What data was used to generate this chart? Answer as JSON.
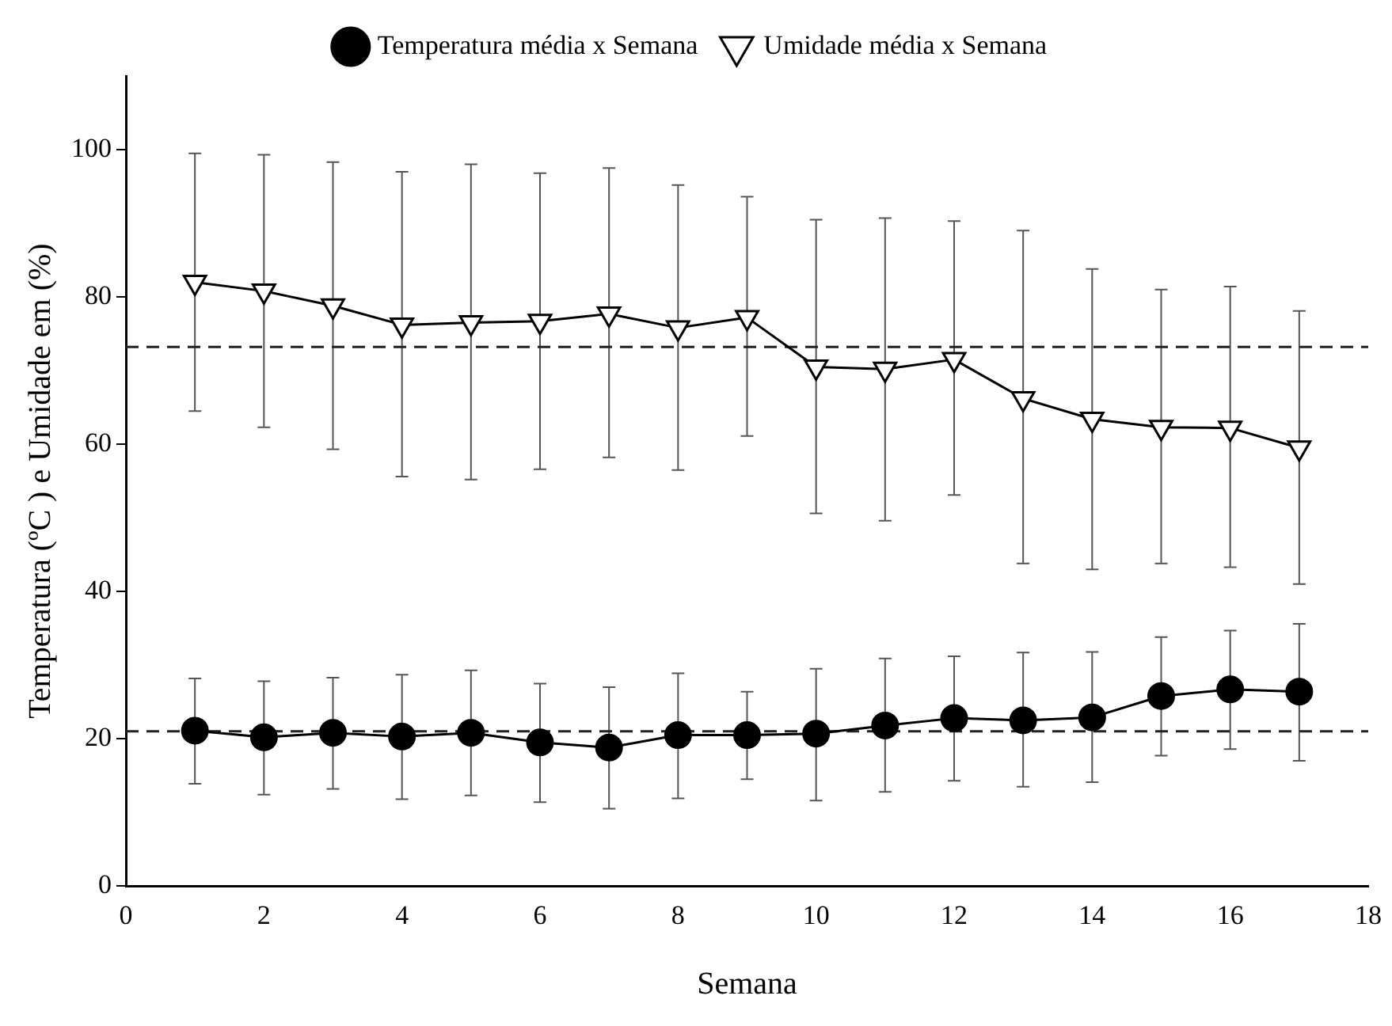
{
  "chart_data": {
    "type": "line",
    "xlabel": "Semana",
    "ylabel": "Temperatura (ºC ) e Umidade em (%)",
    "x": [
      1,
      2,
      3,
      4,
      5,
      6,
      7,
      8,
      9,
      10,
      11,
      12,
      13,
      14,
      15,
      16,
      17
    ],
    "series": [
      {
        "name": "Temperatura média x Semana",
        "color": "#000000",
        "marker": "circle",
        "values": [
          21.1,
          20.2,
          20.8,
          20.3,
          20.8,
          19.5,
          18.8,
          20.5,
          20.5,
          20.7,
          21.8,
          22.8,
          22.5,
          22.9,
          25.8,
          26.7,
          26.4
        ],
        "errors": [
          [
            13.9,
            28.2
          ],
          [
            12.4,
            27.8
          ],
          [
            13.2,
            28.3
          ],
          [
            11.8,
            28.7
          ],
          [
            12.3,
            29.3
          ],
          [
            11.4,
            27.5
          ],
          [
            10.5,
            27
          ],
          [
            11.9,
            28.9
          ],
          [
            14.5,
            26.4
          ],
          [
            11.6,
            29.5
          ],
          [
            12.8,
            30.9
          ],
          [
            14.3,
            31.2
          ],
          [
            13.5,
            31.7
          ],
          [
            14.1,
            31.8
          ],
          [
            17.7,
            33.8
          ],
          [
            18.6,
            34.7
          ],
          [
            17,
            35.6
          ]
        ]
      },
      {
        "name": "Umidade média x Semana",
        "color": "#000000",
        "marker": "triangle",
        "values": [
          82,
          80.8,
          78.8,
          76.2,
          76.5,
          76.7,
          77.7,
          75.8,
          77.2,
          70.5,
          70.2,
          71.5,
          66.2,
          63.4,
          62.3,
          62.2,
          59.5
        ],
        "errors": [
          [
            64.5,
            99.5
          ],
          [
            62.3,
            99.3
          ],
          [
            59.3,
            98.3
          ],
          [
            55.6,
            97
          ],
          [
            55.2,
            98
          ],
          [
            56.6,
            96.8
          ],
          [
            58.2,
            97.5
          ],
          [
            56.5,
            95.2
          ],
          [
            61.1,
            93.6
          ],
          [
            50.6,
            90.5
          ],
          [
            49.6,
            90.7
          ],
          [
            53.1,
            90.3
          ],
          [
            43.8,
            89
          ],
          [
            43,
            83.8
          ],
          [
            43.8,
            81
          ],
          [
            43.3,
            81.4
          ],
          [
            41,
            78.1
          ]
        ]
      }
    ],
    "xlim": [
      0,
      18
    ],
    "xticks": [
      0,
      2,
      4,
      6,
      8,
      10,
      12,
      14,
      16,
      18
    ],
    "ylim": [
      0,
      110
    ],
    "yticks": [
      0,
      20,
      40,
      60,
      80,
      100
    ],
    "ref_lines": [
      {
        "axis": "y",
        "value": 73.2,
        "line_style": "dashed"
      },
      {
        "axis": "y",
        "value": 21,
        "line_style": "dashed"
      }
    ],
    "grid": false,
    "legend": "top",
    "line_style": "solid"
  }
}
